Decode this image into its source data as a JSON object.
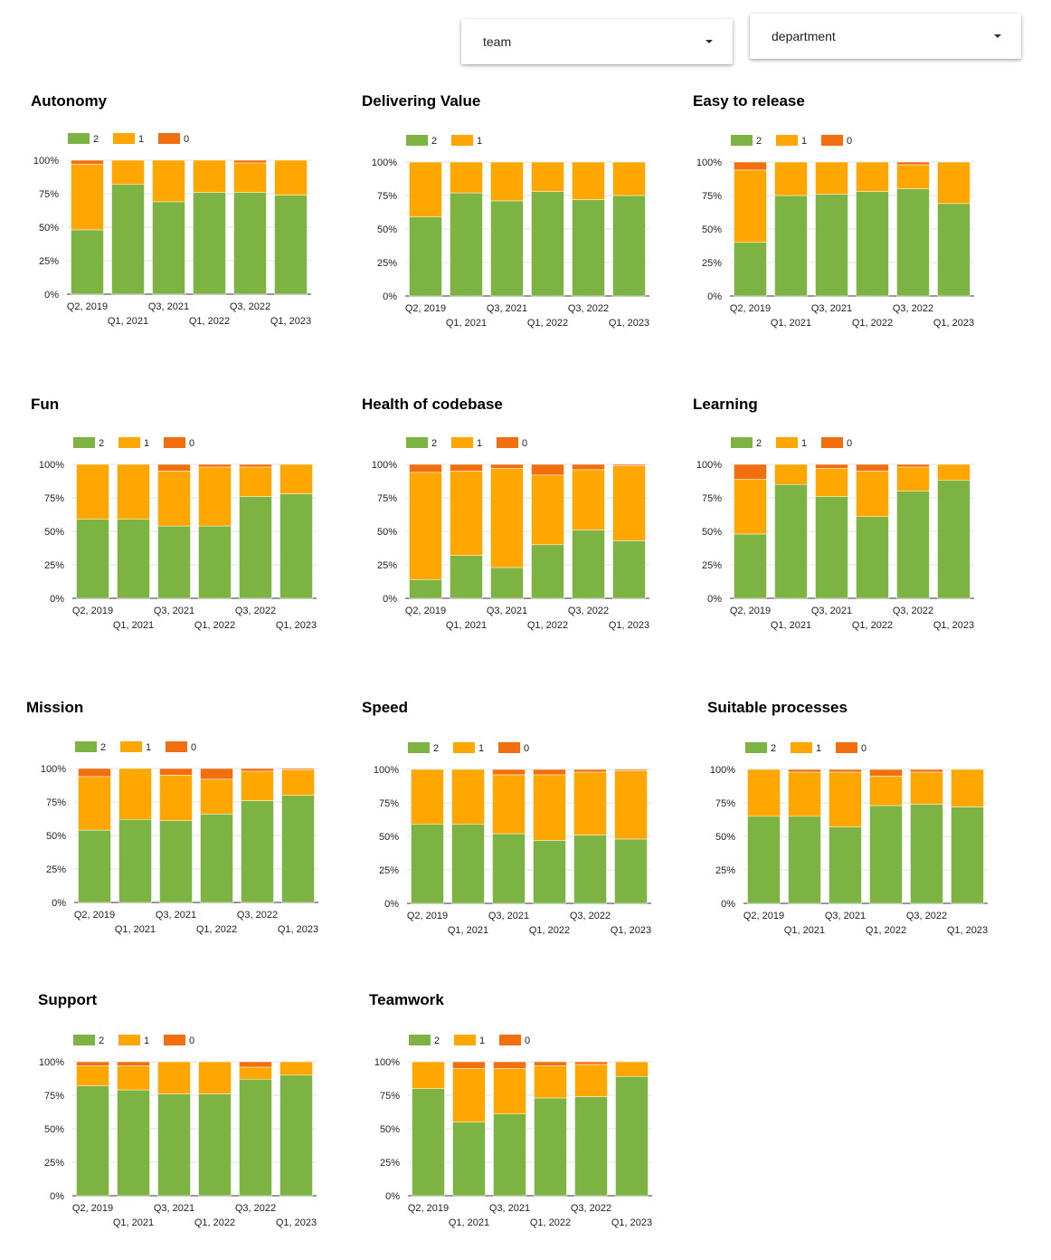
{
  "filters": {
    "team": {
      "label": "team"
    },
    "department": {
      "label": "department"
    }
  },
  "colors": {
    "2": "#7cb342",
    "1": "#ffa600",
    "0": "#f26f0f"
  },
  "chart_data": [
    {
      "type": "bar",
      "stacked": true,
      "title": "Autonomy",
      "legend": [
        "2",
        "1",
        "0"
      ],
      "legend_position": "top-left",
      "categories": [
        "Q2, 2019",
        "Q1, 2021",
        "Q3, 2021",
        "Q1, 2022",
        "Q3, 2022",
        "Q1, 2023"
      ],
      "yticks": [
        "0%",
        "25%",
        "50%",
        "75%",
        "100%"
      ],
      "ylim": [
        0,
        100
      ],
      "series": [
        {
          "name": "2",
          "values": [
            48,
            82,
            69,
            76,
            76,
            74
          ]
        },
        {
          "name": "1",
          "values": [
            49,
            18,
            31,
            24,
            22,
            26
          ]
        },
        {
          "name": "0",
          "values": [
            3,
            0,
            0,
            0,
            2,
            0
          ]
        }
      ]
    },
    {
      "type": "bar",
      "stacked": true,
      "title": "Delivering Value",
      "legend": [
        "2",
        "1"
      ],
      "legend_position": "top-left",
      "categories": [
        "Q2, 2019",
        "Q1, 2021",
        "Q3, 2021",
        "Q1, 2022",
        "Q3, 2022",
        "Q1, 2023"
      ],
      "yticks": [
        "0%",
        "25%",
        "50%",
        "75%",
        "100%"
      ],
      "ylim": [
        0,
        100
      ],
      "series": [
        {
          "name": "2",
          "values": [
            59,
            77,
            71,
            78,
            72,
            75
          ]
        },
        {
          "name": "1",
          "values": [
            41,
            23,
            29,
            22,
            28,
            25
          ]
        }
      ]
    },
    {
      "type": "bar",
      "stacked": true,
      "title": "Easy to release",
      "legend": [
        "2",
        "1",
        "0"
      ],
      "legend_position": "top-left",
      "categories": [
        "Q2, 2019",
        "Q1, 2021",
        "Q3, 2021",
        "Q1, 2022",
        "Q3, 2022",
        "Q1, 2023"
      ],
      "yticks": [
        "0%",
        "25%",
        "50%",
        "75%",
        "100%"
      ],
      "ylim": [
        0,
        100
      ],
      "series": [
        {
          "name": "2",
          "values": [
            40,
            75,
            76,
            78,
            80,
            69
          ]
        },
        {
          "name": "1",
          "values": [
            54,
            25,
            24,
            22,
            18,
            31
          ]
        },
        {
          "name": "0",
          "values": [
            6,
            0,
            0,
            0,
            2,
            0
          ]
        }
      ]
    },
    {
      "type": "bar",
      "stacked": true,
      "title": "Fun",
      "legend": [
        "2",
        "1",
        "0"
      ],
      "legend_position": "top-left",
      "categories": [
        "Q2, 2019",
        "Q1, 2021",
        "Q3, 2021",
        "Q1, 2022",
        "Q3, 2022",
        "Q1, 2023"
      ],
      "yticks": [
        "0%",
        "25%",
        "50%",
        "75%",
        "100%"
      ],
      "ylim": [
        0,
        100
      ],
      "series": [
        {
          "name": "2",
          "values": [
            59,
            59,
            54,
            54,
            76,
            78
          ]
        },
        {
          "name": "1",
          "values": [
            41,
            41,
            41,
            44,
            22,
            22
          ]
        },
        {
          "name": "0",
          "values": [
            0,
            0,
            5,
            2,
            2,
            0
          ]
        }
      ]
    },
    {
      "type": "bar",
      "stacked": true,
      "title": "Health of codebase",
      "legend": [
        "2",
        "1",
        "0"
      ],
      "legend_position": "top-left",
      "categories": [
        "Q2, 2019",
        "Q1, 2021",
        "Q3, 2021",
        "Q1, 2022",
        "Q3, 2022",
        "Q1, 2023"
      ],
      "yticks": [
        "0%",
        "25%",
        "50%",
        "75%",
        "100%"
      ],
      "ylim": [
        0,
        100
      ],
      "series": [
        {
          "name": "2",
          "values": [
            14,
            32,
            23,
            40,
            51,
            43
          ]
        },
        {
          "name": "1",
          "values": [
            80,
            63,
            74,
            52,
            45,
            56
          ]
        },
        {
          "name": "0",
          "values": [
            6,
            5,
            3,
            8,
            4,
            1
          ]
        }
      ]
    },
    {
      "type": "bar",
      "stacked": true,
      "title": "Learning",
      "legend": [
        "2",
        "1",
        "0"
      ],
      "legend_position": "top-left",
      "categories": [
        "Q2, 2019",
        "Q1, 2021",
        "Q3, 2021",
        "Q1, 2022",
        "Q3, 2022",
        "Q1, 2023"
      ],
      "yticks": [
        "0%",
        "25%",
        "50%",
        "75%",
        "100%"
      ],
      "ylim": [
        0,
        100
      ],
      "series": [
        {
          "name": "2",
          "values": [
            48,
            85,
            76,
            61,
            80,
            88
          ]
        },
        {
          "name": "1",
          "values": [
            41,
            15,
            21,
            34,
            18,
            12
          ]
        },
        {
          "name": "0",
          "values": [
            11,
            0,
            3,
            5,
            2,
            0
          ]
        }
      ]
    },
    {
      "type": "bar",
      "stacked": true,
      "title": "Mission",
      "legend": [
        "2",
        "1",
        "0"
      ],
      "legend_position": "top-left",
      "categories": [
        "Q2, 2019",
        "Q1, 2021",
        "Q3, 2021",
        "Q1, 2022",
        "Q3, 2022",
        "Q1, 2023"
      ],
      "yticks": [
        "0%",
        "25%",
        "50%",
        "75%",
        "100%"
      ],
      "ylim": [
        0,
        100
      ],
      "series": [
        {
          "name": "2",
          "values": [
            54,
            62,
            61,
            66,
            76,
            80
          ]
        },
        {
          "name": "1",
          "values": [
            40,
            38,
            34,
            26,
            22,
            19
          ]
        },
        {
          "name": "0",
          "values": [
            6,
            0,
            5,
            8,
            2,
            1
          ]
        }
      ]
    },
    {
      "type": "bar",
      "stacked": true,
      "title": "Speed",
      "legend": [
        "2",
        "1",
        "0"
      ],
      "legend_position": "top-left",
      "categories": [
        "Q2, 2019",
        "Q1, 2021",
        "Q3, 2021",
        "Q1, 2022",
        "Q3, 2022",
        "Q1, 2023"
      ],
      "yticks": [
        "0%",
        "25%",
        "50%",
        "75%",
        "100%"
      ],
      "ylim": [
        0,
        100
      ],
      "series": [
        {
          "name": "2",
          "values": [
            59,
            59,
            52,
            47,
            51,
            48
          ]
        },
        {
          "name": "1",
          "values": [
            41,
            41,
            44,
            49,
            47,
            51
          ]
        },
        {
          "name": "0",
          "values": [
            0,
            0,
            4,
            4,
            2,
            1
          ]
        }
      ]
    },
    {
      "type": "bar",
      "stacked": true,
      "title": "Suitable processes",
      "legend": [
        "2",
        "1",
        "0"
      ],
      "legend_position": "top-left",
      "categories": [
        "Q2, 2019",
        "Q1, 2021",
        "Q3, 2021",
        "Q1, 2022",
        "Q3, 2022",
        "Q1, 2023"
      ],
      "yticks": [
        "0%",
        "25%",
        "50%",
        "75%",
        "100%"
      ],
      "ylim": [
        0,
        100
      ],
      "series": [
        {
          "name": "2",
          "values": [
            65,
            65,
            57,
            73,
            74,
            72
          ]
        },
        {
          "name": "1",
          "values": [
            35,
            33,
            41,
            22,
            24,
            28
          ]
        },
        {
          "name": "0",
          "values": [
            0,
            2,
            2,
            5,
            2,
            0
          ]
        }
      ]
    },
    {
      "type": "bar",
      "stacked": true,
      "title": "Support",
      "legend": [
        "2",
        "1",
        "0"
      ],
      "legend_position": "top-left",
      "categories": [
        "Q2, 2019",
        "Q1, 2021",
        "Q3, 2021",
        "Q1, 2022",
        "Q3, 2022",
        "Q1, 2023"
      ],
      "yticks": [
        "0%",
        "25%",
        "50%",
        "75%",
        "100%"
      ],
      "ylim": [
        0,
        100
      ],
      "series": [
        {
          "name": "2",
          "values": [
            82,
            79,
            76,
            76,
            87,
            90
          ]
        },
        {
          "name": "1",
          "values": [
            15,
            18,
            24,
            24,
            9,
            10
          ]
        },
        {
          "name": "0",
          "values": [
            3,
            3,
            0,
            0,
            4,
            0
          ]
        }
      ]
    },
    {
      "type": "bar",
      "stacked": true,
      "title": "Teamwork",
      "legend": [
        "2",
        "1",
        "0"
      ],
      "legend_position": "top-left",
      "categories": [
        "Q2, 2019",
        "Q1, 2021",
        "Q3, 2021",
        "Q1, 2022",
        "Q3, 2022",
        "Q1, 2023"
      ],
      "yticks": [
        "0%",
        "25%",
        "50%",
        "75%",
        "100%"
      ],
      "ylim": [
        0,
        100
      ],
      "series": [
        {
          "name": "2",
          "values": [
            80,
            55,
            61,
            73,
            74,
            89
          ]
        },
        {
          "name": "1",
          "values": [
            20,
            40,
            34,
            24,
            24,
            11
          ]
        },
        {
          "name": "0",
          "values": [
            0,
            5,
            5,
            3,
            2,
            0
          ]
        }
      ]
    }
  ]
}
